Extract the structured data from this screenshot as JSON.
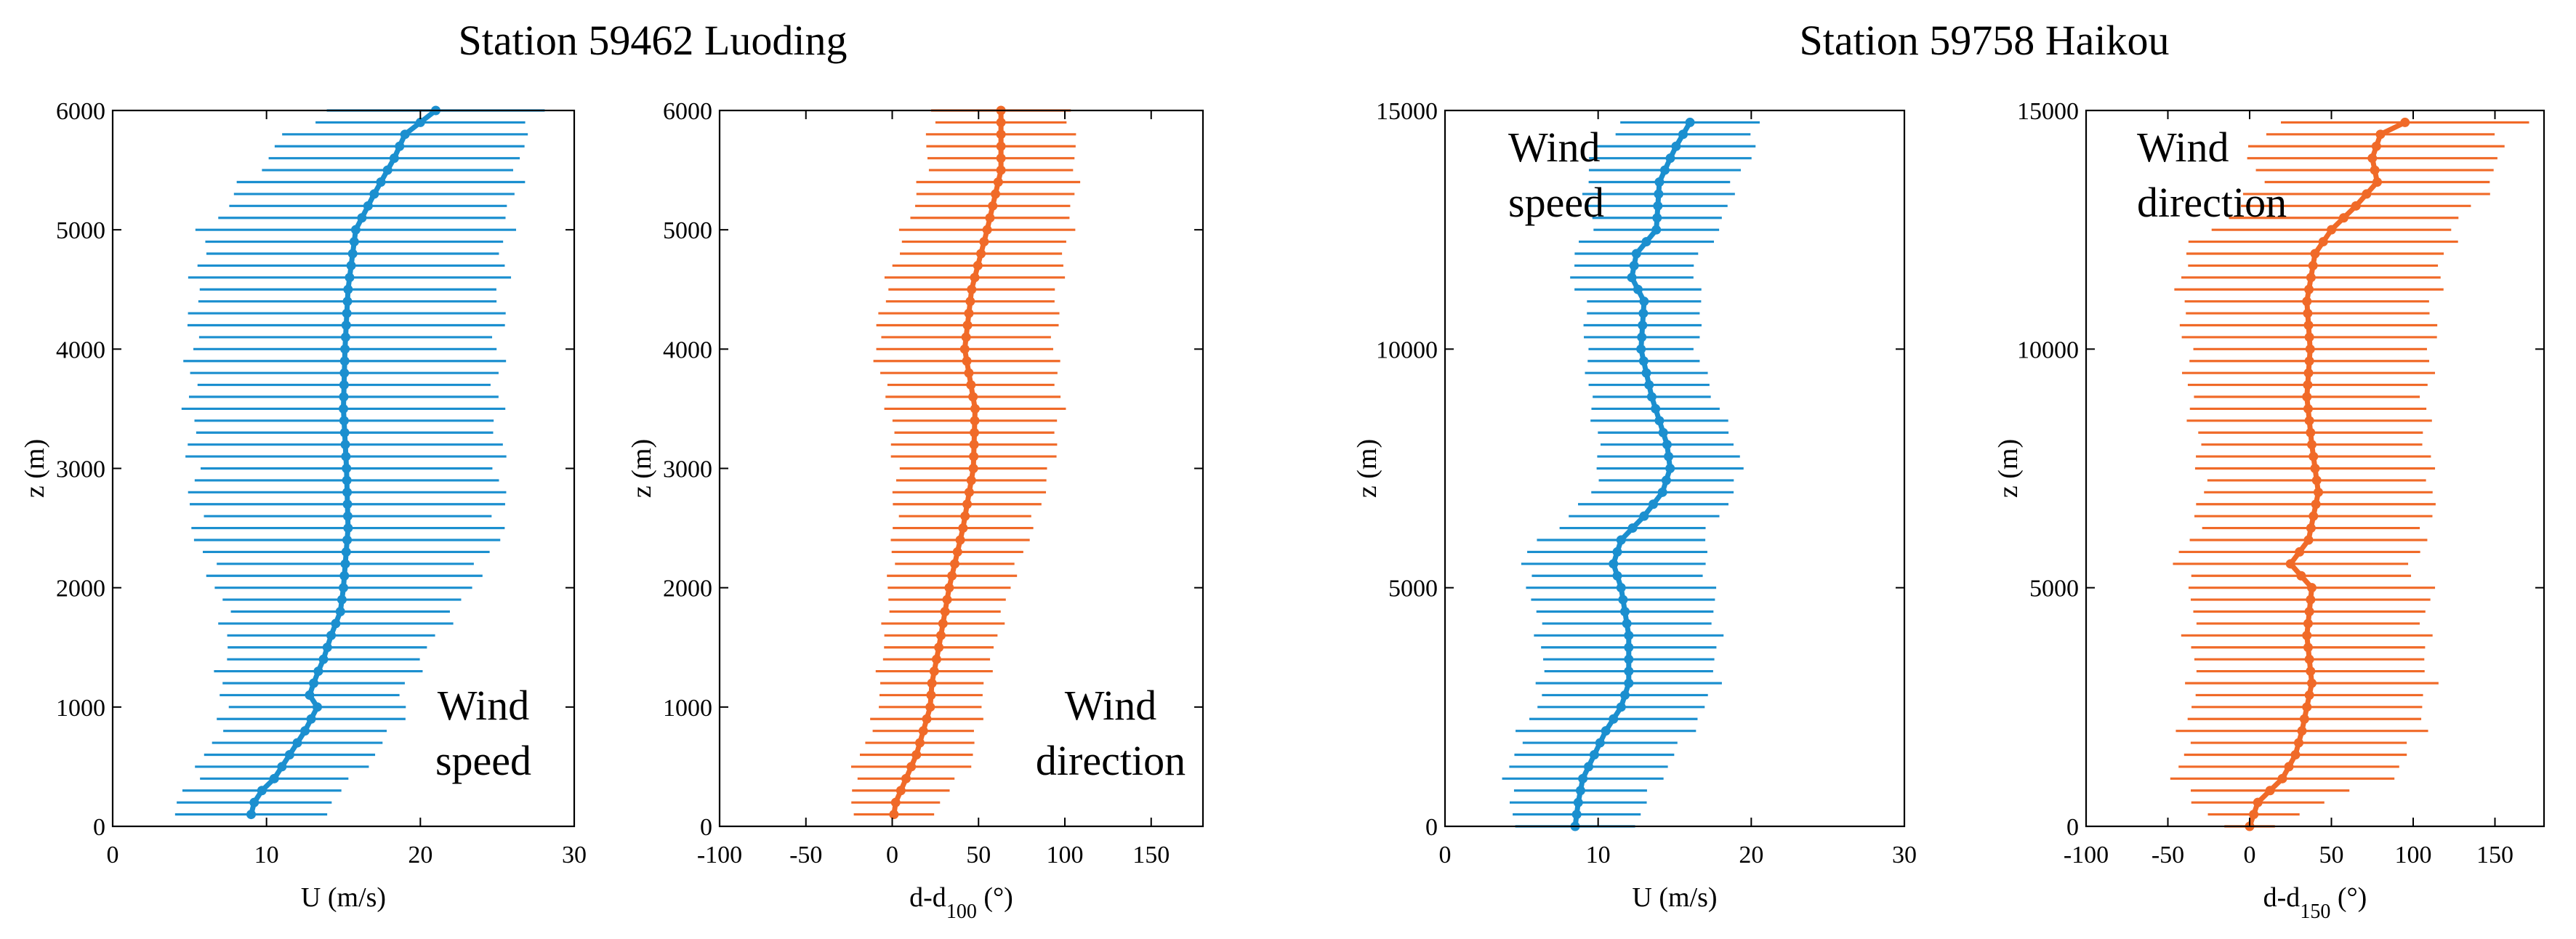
{
  "stations": [
    {
      "title": "Station 59462 Luoding"
    },
    {
      "title": "Station 59758 Haikou"
    }
  ],
  "colors": {
    "speed": "#1b8fcf",
    "direction": "#f06a28",
    "axis": "#000000"
  },
  "chart_data": [
    {
      "type": "line",
      "panel": "luoding-speed",
      "title": "",
      "xlabel": "U (m/s)",
      "ylabel": "z (m)",
      "xlim": [
        0,
        30
      ],
      "ylim": [
        0,
        6000
      ],
      "xticks": [
        0,
        10,
        20,
        30
      ],
      "yticks": [
        0,
        1000,
        2000,
        3000,
        4000,
        5000,
        6000
      ],
      "annotation": [
        "Wind",
        "speed"
      ],
      "color_key": "speed",
      "levels": {
        "start": 100,
        "end": 6000,
        "step": 100
      },
      "profile": [
        [
          100,
          9.0
        ],
        [
          250,
          9.3
        ],
        [
          400,
          10.5
        ],
        [
          600,
          11.5
        ],
        [
          800,
          12.5
        ],
        [
          1000,
          13.3
        ],
        [
          1100,
          12.8
        ],
        [
          1250,
          13.2
        ],
        [
          1400,
          13.7
        ],
        [
          1600,
          14.2
        ],
        [
          1800,
          14.8
        ],
        [
          2000,
          15.0
        ],
        [
          2500,
          15.3
        ],
        [
          3000,
          15.2
        ],
        [
          3500,
          15.0
        ],
        [
          4000,
          15.1
        ],
        [
          4500,
          15.3
        ],
        [
          5000,
          15.8
        ],
        [
          5300,
          17.0
        ],
        [
          5600,
          18.3
        ],
        [
          5800,
          19.0
        ],
        [
          6000,
          21.0
        ]
      ],
      "spread": [
        [
          100,
          4.8
        ],
        [
          600,
          5.5
        ],
        [
          1000,
          5.8
        ],
        [
          1600,
          6.8
        ],
        [
          2500,
          10.0
        ],
        [
          3500,
          10.0
        ],
        [
          4500,
          10.0
        ],
        [
          5000,
          9.8
        ],
        [
          5500,
          8.6
        ],
        [
          6000,
          7.0
        ]
      ]
    },
    {
      "type": "line",
      "panel": "luoding-direction",
      "title": "",
      "xlabel": "d-d",
      "xlabel_sub": "100",
      "xlabel_unit": " (°)",
      "ylabel": "z (m)",
      "xlim": [
        -100,
        180
      ],
      "ylim": [
        0,
        6000
      ],
      "xticks": [
        -100,
        -50,
        0,
        50,
        100,
        150
      ],
      "yticks": [
        0,
        1000,
        2000,
        3000,
        4000,
        5000,
        6000
      ],
      "annotation": [
        "Wind",
        "direction"
      ],
      "color_key": "direction",
      "levels": {
        "start": 100,
        "end": 6000,
        "step": 100
      },
      "profile": [
        [
          0,
          0
        ],
        [
          200,
          2
        ],
        [
          400,
          8
        ],
        [
          600,
          14
        ],
        [
          800,
          18
        ],
        [
          1000,
          22
        ],
        [
          1200,
          23
        ],
        [
          1500,
          27
        ],
        [
          2000,
          33
        ],
        [
          2500,
          41
        ],
        [
          3000,
          47
        ],
        [
          3500,
          48
        ],
        [
          4000,
          42
        ],
        [
          4500,
          46
        ],
        [
          5000,
          55
        ],
        [
          5500,
          63
        ],
        [
          6000,
          63
        ]
      ],
      "spread": [
        [
          0,
          20
        ],
        [
          500,
          33
        ],
        [
          1000,
          30
        ],
        [
          2000,
          35
        ],
        [
          3000,
          45
        ],
        [
          3500,
          50
        ],
        [
          4000,
          52
        ],
        [
          5000,
          48
        ],
        [
          6000,
          40
        ]
      ]
    },
    {
      "type": "line",
      "panel": "haikou-speed",
      "title": "",
      "xlabel": "U (m/s)",
      "ylabel": "z (m)",
      "xlim": [
        0,
        30
      ],
      "ylim": [
        0,
        15000
      ],
      "xticks": [
        0,
        10,
        20,
        30
      ],
      "yticks": [
        0,
        5000,
        10000,
        15000
      ],
      "annotation": [
        "Wind",
        "speed"
      ],
      "color_key": "speed",
      "levels": {
        "start": 0,
        "end": 14750,
        "step": 250
      },
      "profile": [
        [
          0,
          8.5
        ],
        [
          500,
          8.7
        ],
        [
          1000,
          9.0
        ],
        [
          2000,
          10.5
        ],
        [
          2500,
          11.5
        ],
        [
          3000,
          12.0
        ],
        [
          4000,
          12.0
        ],
        [
          5000,
          11.5
        ],
        [
          5500,
          11.0
        ],
        [
          6000,
          11.5
        ],
        [
          6500,
          13.0
        ],
        [
          7000,
          14.2
        ],
        [
          7500,
          14.7
        ],
        [
          8000,
          14.5
        ],
        [
          9000,
          13.5
        ],
        [
          10000,
          12.8
        ],
        [
          11000,
          13.0
        ],
        [
          11500,
          12.2
        ],
        [
          12000,
          12.5
        ],
        [
          12500,
          13.8
        ],
        [
          13500,
          14.0
        ],
        [
          14200,
          15.0
        ],
        [
          14750,
          16.0
        ]
      ],
      "spread": [
        [
          0,
          3.8
        ],
        [
          1000,
          5.0
        ],
        [
          2000,
          5.5
        ],
        [
          4000,
          5.8
        ],
        [
          5500,
          6.0
        ],
        [
          6500,
          4.8
        ],
        [
          8000,
          4.5
        ],
        [
          10000,
          3.6
        ],
        [
          11500,
          4.0
        ],
        [
          12500,
          4.2
        ],
        [
          14000,
          5.2
        ],
        [
          14750,
          4.5
        ]
      ]
    },
    {
      "type": "line",
      "panel": "haikou-direction",
      "title": "",
      "xlabel": "d-d",
      "xlabel_sub": "150",
      "xlabel_unit": " (°)",
      "ylabel": "z (m)",
      "xlim": [
        -100,
        180
      ],
      "ylim": [
        0,
        15000
      ],
      "xticks": [
        -100,
        -50,
        0,
        50,
        100,
        150
      ],
      "yticks": [
        0,
        5000,
        10000,
        15000
      ],
      "annotation": [
        "Wind",
        "direction"
      ],
      "color_key": "direction",
      "levels": {
        "start": 0,
        "end": 14750,
        "step": 250
      },
      "profile": [
        [
          0,
          0
        ],
        [
          500,
          5
        ],
        [
          1000,
          20
        ],
        [
          1500,
          28
        ],
        [
          2000,
          32
        ],
        [
          3000,
          38
        ],
        [
          4000,
          35
        ],
        [
          5000,
          38
        ],
        [
          5500,
          25
        ],
        [
          6000,
          36
        ],
        [
          7000,
          42
        ],
        [
          8000,
          38
        ],
        [
          9000,
          35
        ],
        [
          10000,
          37
        ],
        [
          11000,
          35
        ],
        [
          12000,
          40
        ],
        [
          12500,
          50
        ],
        [
          13000,
          65
        ],
        [
          13500,
          78
        ],
        [
          14000,
          75
        ],
        [
          14500,
          80
        ],
        [
          14750,
          95
        ]
      ],
      "spread": [
        [
          0,
          15
        ],
        [
          1000,
          65
        ],
        [
          2000,
          72
        ],
        [
          5000,
          72
        ],
        [
          8000,
          70
        ],
        [
          10000,
          75
        ],
        [
          12000,
          80
        ],
        [
          13000,
          70
        ],
        [
          14000,
          75
        ],
        [
          14750,
          75
        ]
      ]
    }
  ]
}
